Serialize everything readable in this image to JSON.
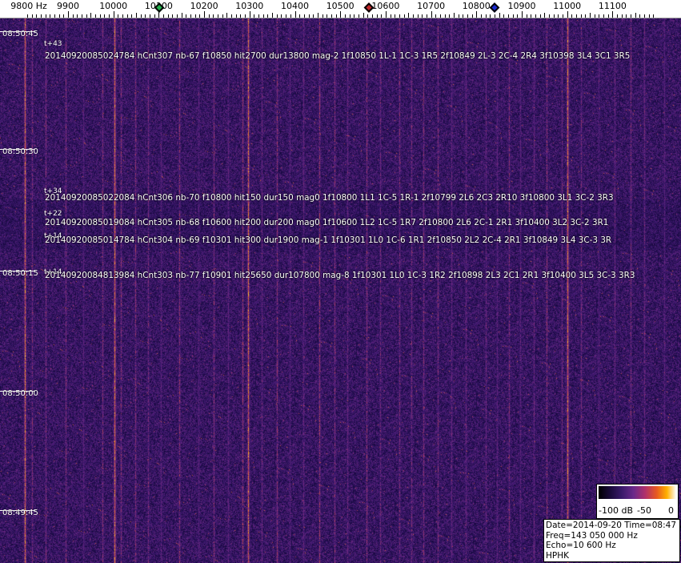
{
  "axis": {
    "unit_label": "9800 Hz",
    "ticks": [
      "9900",
      "10000",
      "10100",
      "10200",
      "10300",
      "10400",
      "10500",
      "10600",
      "10700",
      "10800",
      "10900",
      "11000",
      "11100"
    ]
  },
  "markers": [
    {
      "name": "green",
      "color": "#22b14c"
    },
    {
      "name": "red",
      "color": "#c0282a"
    },
    {
      "name": "blue",
      "color": "#1a2ad0"
    }
  ],
  "time_labels": [
    "08:50:45",
    "08:50:30",
    "08:50:15",
    "08:50:00",
    "08:49:45"
  ],
  "detections": [
    {
      "offset": "t+43",
      "text": "20140920085024784 hCnt307 nb-67 f10850 hit2700 dur13800 mag-2 1f10850 1L-1 1C-3 1R5 2f10849 2L-3 2C-4 2R4 3f10398 3L4 3C1 3R5"
    },
    {
      "offset": "t+34",
      "text": "20140920085022084 hCnt306 nb-70 f10800 hit150 dur150 mag0 1f10800 1L1 1C-5 1R-1 2f10799 2L6 2C3 2R10 3f10800 3L1 3C-2 3R3"
    },
    {
      "offset": "t+22",
      "text": "20140920085019084 hCnt305 nb-68 f10600 hit200 dur200 mag0 1f10600 1L2 1C-5 1R7 2f10800 2L6 2C-1 2R1 3f10400 3L2 3C-2 3R1"
    },
    {
      "offset": "t+14",
      "text": "20140920085014784 hCnt304 nb-69 f10301 hit300 dur1900 mag-1 1f10301 1L0 1C-6 1R1 2f10850 2L2 2C-4 2R1 3f10849 3L4 3C-3 3R"
    },
    {
      "offset": "t+14",
      "text": "20140920084813984 hCnt303 nb-77 f10901 hit25650 dur107800 mag-8 1f10301 1L0 1C-3 1R2 2f10898 2L3 2C1 2R1 3f10400 3L5 3C-3 3R3"
    }
  ],
  "scale": {
    "min_label": "-100 dB",
    "mid_label": "-50",
    "max_label": "0"
  },
  "info": {
    "datetime": "Date=2014-09-20 Time=08:47 UTC",
    "freq": "Freq=143 050 000 Hz",
    "echo": "Echo=10 600 Hz",
    "station": "HPHK"
  }
}
